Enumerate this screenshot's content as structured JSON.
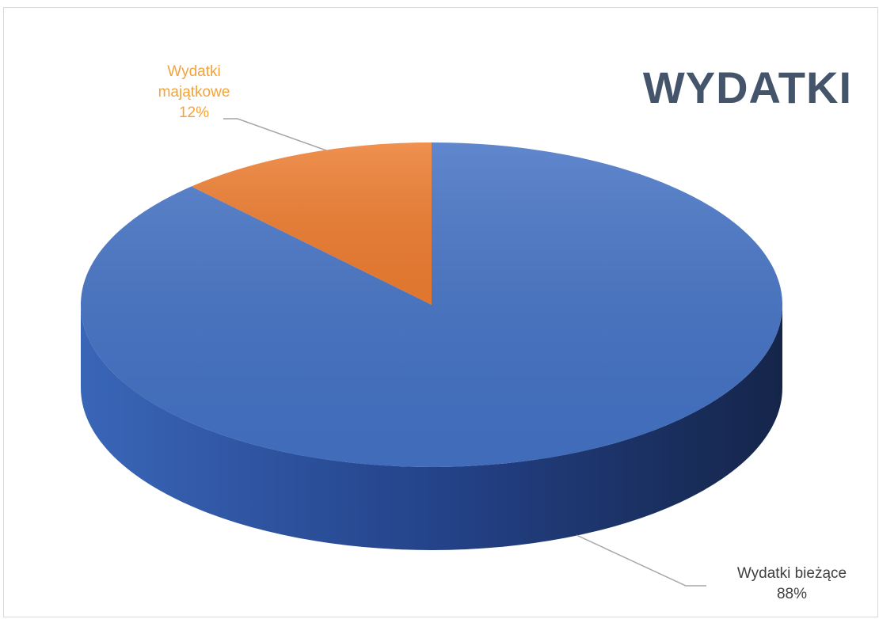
{
  "chart_data": {
    "type": "pie",
    "title": "WYDATKI",
    "categories": [
      "Wydatki bieżące",
      "Wydatki majątkowe"
    ],
    "values": [
      88,
      12
    ],
    "value_labels": [
      "88%",
      "12%"
    ],
    "colors": [
      "#4472c4",
      "#ed7d31"
    ]
  }
}
